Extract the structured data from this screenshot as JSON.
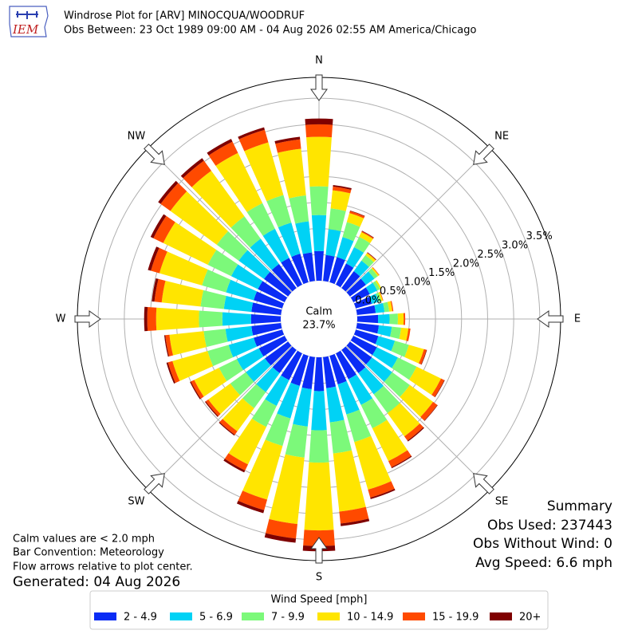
{
  "logo_text": "IEM",
  "chart_data": {
    "type": "windrose",
    "title": "Windrose Plot for [ARV] MINOCQUA/WOODRUF",
    "subtitle": "Obs Between: 23 Oct 1989 09:00 AM - 04 Aug 2026 02:55 AM America/Chicago",
    "directions": [
      0,
      10,
      20,
      30,
      40,
      50,
      60,
      70,
      80,
      90,
      100,
      110,
      120,
      130,
      140,
      150,
      160,
      170,
      180,
      190,
      200,
      210,
      220,
      230,
      240,
      250,
      260,
      270,
      280,
      290,
      300,
      310,
      320,
      330,
      340,
      350
    ],
    "xticks": [
      {
        "value": 0,
        "label": "N"
      },
      {
        "value": 45,
        "label": "NE"
      },
      {
        "value": 90,
        "label": "E"
      },
      {
        "value": 135,
        "label": "SE"
      },
      {
        "value": 180,
        "label": "S"
      },
      {
        "value": 225,
        "label": "SW"
      },
      {
        "value": 270,
        "label": "W"
      },
      {
        "value": 315,
        "label": "NW"
      }
    ],
    "rlim": [
      0,
      3.9
    ],
    "rticks": [
      {
        "value": 0,
        "label": "0.0%"
      },
      {
        "value": 0.5,
        "label": "0.5%"
      },
      {
        "value": 1,
        "label": "1.0%"
      },
      {
        "value": 1.5,
        "label": "1.5%"
      },
      {
        "value": 2,
        "label": "2.0%"
      },
      {
        "value": 2.5,
        "label": "2.5%"
      },
      {
        "value": 3,
        "label": "3.0%"
      },
      {
        "value": 3.5,
        "label": "3.5%"
      }
    ],
    "grid": true,
    "calm": {
      "name": "Calm",
      "value": 23.7,
      "value_label": "23.7%"
    },
    "legend_title": "Wind Speed [mph]",
    "series": [
      {
        "name": "2 - 4.9",
        "color": "#0a2cf5",
        "values": [
          0.57,
          0.5,
          0.5,
          0.45,
          0.4,
          0.38,
          0.35,
          0.32,
          0.36,
          0.4,
          0.42,
          0.45,
          0.5,
          0.52,
          0.55,
          0.55,
          0.57,
          0.6,
          0.65,
          0.62,
          0.6,
          0.57,
          0.55,
          0.55,
          0.55,
          0.57,
          0.57,
          0.57,
          0.57,
          0.57,
          0.57,
          0.57,
          0.57,
          0.57,
          0.57,
          0.55
        ]
      },
      {
        "name": "5 - 6.9",
        "color": "#00d2f5",
        "values": [
          0.69,
          0.5,
          0.4,
          0.35,
          0.25,
          0.2,
          0.16,
          0.14,
          0.17,
          0.22,
          0.25,
          0.33,
          0.45,
          0.48,
          0.5,
          0.55,
          0.6,
          0.66,
          0.75,
          0.72,
          0.65,
          0.55,
          0.45,
          0.45,
          0.47,
          0.5,
          0.5,
          0.55,
          0.53,
          0.55,
          0.57,
          0.6,
          0.6,
          0.62,
          0.62,
          0.6
        ]
      },
      {
        "name": "7 - 9.9",
        "color": "#7cf97a",
        "values": [
          0.55,
          0.4,
          0.3,
          0.22,
          0.13,
          0.08,
          0.06,
          0.05,
          0.09,
          0.16,
          0.18,
          0.28,
          0.4,
          0.42,
          0.45,
          0.5,
          0.55,
          0.6,
          0.62,
          0.6,
          0.55,
          0.45,
          0.38,
          0.37,
          0.38,
          0.42,
          0.42,
          0.45,
          0.45,
          0.48,
          0.5,
          0.52,
          0.53,
          0.55,
          0.55,
          0.5
        ]
      },
      {
        "name": "10 - 14.9",
        "color": "#ffe500",
        "values": [
          0.95,
          0.35,
          0.18,
          0.1,
          0.05,
          0.03,
          0.03,
          0.03,
          0.06,
          0.11,
          0.14,
          0.3,
          0.52,
          0.55,
          0.55,
          0.7,
          0.95,
          1.12,
          1.3,
          1.28,
          1.07,
          0.8,
          0.55,
          0.52,
          0.53,
          0.7,
          0.66,
          0.82,
          0.75,
          0.85,
          0.95,
          1.1,
          1.08,
          1.07,
          1.05,
          0.9
        ]
      },
      {
        "name": "15 - 19.9",
        "color": "#ff4a00",
        "values": [
          0.24,
          0.07,
          0.04,
          0.02,
          0.01,
          0.01,
          0,
          0.01,
          0.02,
          0.03,
          0.04,
          0.05,
          0.07,
          0.1,
          0.1,
          0.13,
          0.16,
          0.23,
          0.3,
          0.28,
          0.21,
          0.13,
          0.08,
          0.06,
          0.07,
          0.09,
          0.08,
          0.17,
          0.14,
          0.17,
          0.21,
          0.23,
          0.24,
          0.24,
          0.25,
          0.18
        ]
      },
      {
        "name": "20+",
        "color": "#7f0000",
        "values": [
          0.11,
          0.03,
          0.01,
          0.01,
          0.01,
          0,
          0,
          0,
          0,
          0,
          0,
          0.01,
          0.01,
          0.01,
          0.02,
          0.02,
          0.03,
          0.05,
          0.1,
          0.08,
          0.06,
          0.04,
          0.02,
          0.02,
          0.02,
          0.03,
          0.02,
          0.06,
          0.05,
          0.06,
          0.06,
          0.06,
          0.06,
          0.06,
          0.05,
          0.05
        ]
      }
    ],
    "notes": [
      "Calm values are < 2.0 mph",
      "Bar Convention: Meteorology",
      "Flow arrows relative to plot center."
    ],
    "generated": "Generated: 04 Aug 2026",
    "summary": [
      "Summary",
      "Obs Used: 237443",
      "Obs Without Wind: 0",
      "Avg Speed: 6.6 mph"
    ]
  }
}
